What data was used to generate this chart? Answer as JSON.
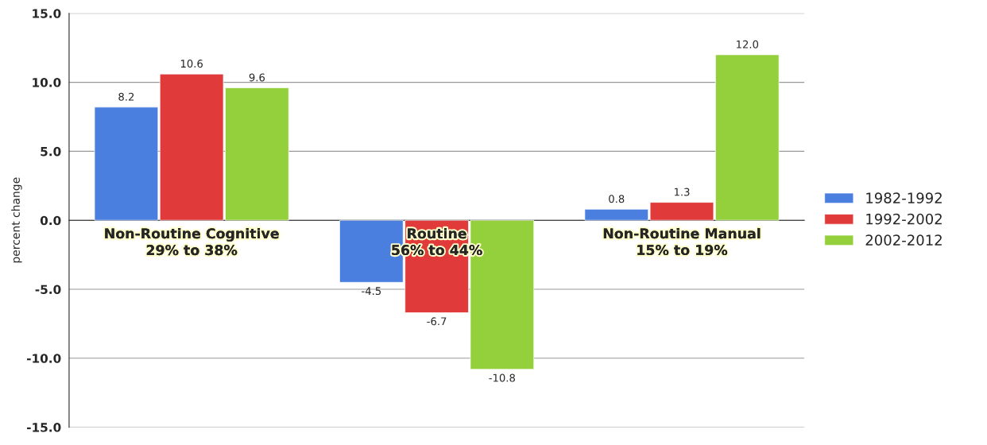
{
  "chart_data": {
    "type": "bar",
    "ylabel": "percent change",
    "categories": [
      "Non-Routine Cognitive\n29% to 38%",
      "Routine\n56% to 44%",
      "Non-Routine Manual\n15% to 19%"
    ],
    "series": [
      {
        "name": "1982-1992",
        "color": "#4a7fe0",
        "values": [
          8.2,
          -4.5,
          0.8
        ],
        "value_labels": [
          "8.2",
          "-4.5",
          "0.8"
        ]
      },
      {
        "name": "1992-2002",
        "color": "#e03a3a",
        "values": [
          10.6,
          -6.7,
          1.3
        ],
        "value_labels": [
          "10.6",
          "-6.7",
          "1.3"
        ]
      },
      {
        "name": "2002-2012",
        "color": "#94cf3c",
        "values": [
          9.6,
          -10.8,
          12.0
        ],
        "value_labels": [
          "9.6",
          "-10.8",
          "12.0"
        ]
      }
    ],
    "ylim": [
      -15,
      15
    ],
    "yticks": [
      {
        "value": -15,
        "label": "-15.0"
      },
      {
        "value": -10,
        "label": "-10.0"
      },
      {
        "value": -5,
        "label": "-5.0"
      },
      {
        "value": 0,
        "label": "0.0"
      },
      {
        "value": 5,
        "label": "5.0"
      },
      {
        "value": 10,
        "label": "10.0"
      },
      {
        "value": 15,
        "label": "15.0"
      }
    ],
    "grid": "y",
    "legend": "right"
  }
}
